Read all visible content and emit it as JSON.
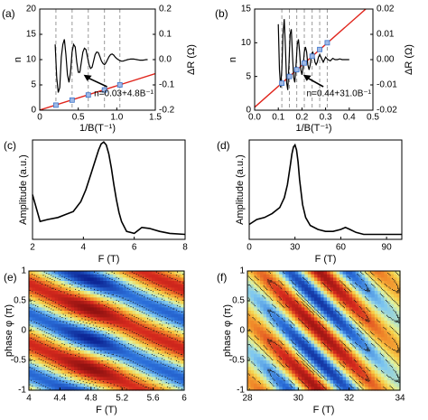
{
  "figure": {
    "panels": [
      "(a)",
      "(b)",
      "(c)",
      "(d)",
      "(e)",
      "(f)"
    ]
  },
  "chart_data": [
    {
      "panel": "(a)",
      "type": "line",
      "xlabel": "1/B(T⁻¹)",
      "ylabel": "n",
      "ylabel_right": "ΔR (Ω)",
      "xlim": [
        0,
        1.5
      ],
      "ylim": [
        0,
        20
      ],
      "ylim_right": [
        -0.2,
        0.2
      ],
      "xticks": [
        "0",
        "0.5",
        "1.0",
        "1.5"
      ],
      "yticks": [
        "0",
        "5",
        "10",
        "15",
        "20"
      ],
      "yticks_right": [
        "-0.2",
        "-0.1",
        "0.0",
        "0.1",
        "0.2"
      ],
      "grid": false,
      "annotation": "n=0.03+4.8B⁻¹",
      "guide_lines_x": [
        0.21,
        0.42,
        0.63,
        0.84,
        1.04
      ],
      "series": [
        {
          "role": "fit_line",
          "color": "#e0241b",
          "x": [
            0,
            1.5
          ],
          "y": [
            0.03,
            7.23
          ]
        },
        {
          "role": "index_points",
          "color": "#3b73c9",
          "x": [
            0.21,
            0.42,
            0.63,
            0.84,
            1.04
          ],
          "y": [
            1,
            2,
            3,
            4,
            5
          ]
        },
        {
          "role": "oscillation_dR",
          "color": "#000000",
          "x": [
            0.2,
            0.22,
            0.24,
            0.26,
            0.28,
            0.3,
            0.32,
            0.34,
            0.36,
            0.38,
            0.4,
            0.42,
            0.44,
            0.46,
            0.48,
            0.5,
            0.52,
            0.54,
            0.56,
            0.58,
            0.6,
            0.62,
            0.64,
            0.66,
            0.68,
            0.7,
            0.72,
            0.74,
            0.76,
            0.78,
            0.8,
            0.82,
            0.84,
            0.86,
            0.88,
            0.9,
            0.92,
            0.94,
            0.96,
            0.98,
            1.0,
            1.02,
            1.04,
            1.06,
            1.08,
            1.1,
            1.12,
            1.14,
            1.16,
            1.18,
            1.2,
            1.22,
            1.24,
            1.26,
            1.28,
            1.3,
            1.32,
            1.34,
            1.36,
            1.38,
            1.4
          ],
          "y": [
            0.06,
            -0.07,
            -0.13,
            -0.11,
            0.01,
            0.06,
            0.08,
            0.02,
            -0.06,
            -0.09,
            -0.05,
            0.03,
            0.06,
            0.05,
            -0.01,
            -0.05,
            -0.05,
            -0.01,
            0.03,
            0.045,
            0.04,
            0.01,
            -0.02,
            -0.035,
            -0.03,
            -0.005,
            0.02,
            0.03,
            0.028,
            0.012,
            -0.005,
            -0.015,
            -0.02,
            -0.012,
            0.0,
            0.012,
            0.02,
            0.022,
            0.018,
            0.01,
            0.004,
            0.0,
            -0.004,
            -0.006,
            -0.006,
            -0.004,
            -0.002,
            0.0,
            0.001,
            0.002,
            0.002,
            0.002,
            0.001,
            0.0,
            -0.001,
            -0.002,
            -0.002,
            -0.002,
            -0.001,
            0.0,
            0.0
          ]
        }
      ]
    },
    {
      "panel": "(b)",
      "type": "line",
      "xlabel": "1/B(T⁻¹)",
      "ylabel": "n",
      "ylabel_right": "ΔR (Ω)",
      "xlim": [
        0.0,
        0.5
      ],
      "ylim": [
        0,
        15
      ],
      "ylim_right": [
        -0.02,
        0.02
      ],
      "xticks": [
        "0.0",
        "0.1",
        "0.2",
        "0.3",
        "0.4",
        "0.5"
      ],
      "yticks": [
        "0",
        "5",
        "10",
        "15"
      ],
      "yticks_right": [
        "-0.02",
        "-0.01",
        "0.00",
        "0.01",
        "0.02"
      ],
      "grid": false,
      "annotation": "n=0.44+31.0B⁻¹",
      "guide_lines_x": [
        0.115,
        0.147,
        0.178,
        0.21,
        0.243,
        0.275,
        0.307
      ],
      "series": [
        {
          "role": "fit_line",
          "color": "#e0241b",
          "x": [
            0,
            0.5
          ],
          "y": [
            0.44,
            15.94
          ]
        },
        {
          "role": "index_points",
          "color": "#3b73c9",
          "x": [
            0.115,
            0.147,
            0.178,
            0.21,
            0.243,
            0.275,
            0.307
          ],
          "y": [
            4,
            5,
            6,
            7,
            8,
            9,
            10
          ]
        },
        {
          "role": "oscillation_dR",
          "color": "#000000",
          "x": [
            0.1,
            0.105,
            0.11,
            0.115,
            0.12,
            0.125,
            0.13,
            0.135,
            0.14,
            0.145,
            0.15,
            0.155,
            0.16,
            0.165,
            0.17,
            0.175,
            0.18,
            0.185,
            0.19,
            0.195,
            0.2,
            0.205,
            0.21,
            0.215,
            0.22,
            0.225,
            0.23,
            0.235,
            0.24,
            0.245,
            0.25,
            0.255,
            0.26,
            0.265,
            0.27,
            0.275,
            0.28,
            0.285,
            0.29,
            0.295,
            0.3,
            0.31,
            0.32,
            0.33,
            0.34,
            0.35,
            0.36,
            0.37,
            0.38,
            0.39,
            0.4
          ],
          "y": [
            0.014,
            -0.004,
            -0.011,
            -0.004,
            0.01,
            0.016,
            0.005,
            -0.009,
            -0.012,
            -0.002,
            0.01,
            0.012,
            0.002,
            -0.007,
            -0.009,
            -0.002,
            0.006,
            0.008,
            0.003,
            -0.004,
            -0.006,
            -0.003,
            0.003,
            0.005,
            0.003,
            -0.002,
            -0.004,
            -0.002,
            0.002,
            0.003,
            0.002,
            -0.001,
            -0.002,
            -0.001,
            0.001,
            0.002,
            0.001,
            0.0,
            -0.001,
            0.0,
            0.001,
            0.0,
            -0.0005,
            0.0005,
            0.0,
            0.0,
            0.0003,
            0.0,
            0.0,
            0.0,
            0.0
          ]
        }
      ]
    },
    {
      "panel": "(c)",
      "type": "line",
      "xlabel": "F (T)",
      "ylabel": "Amplitude (a.u.)",
      "xlim": [
        2,
        8
      ],
      "xticks": [
        "2",
        "4",
        "6",
        "8"
      ],
      "grid": false,
      "series": [
        {
          "x": [
            2.0,
            2.3,
            2.6,
            3.0,
            3.3,
            3.6,
            3.9,
            4.1,
            4.3,
            4.5,
            4.6,
            4.7,
            4.8,
            4.9,
            5.0,
            5.1,
            5.2,
            5.3,
            5.4,
            5.5,
            5.7,
            6.0,
            6.3,
            6.6,
            7.0,
            7.4,
            8.0
          ],
          "y": [
            0.45,
            0.18,
            0.2,
            0.22,
            0.25,
            0.28,
            0.38,
            0.5,
            0.66,
            0.82,
            0.9,
            0.96,
            0.98,
            0.95,
            0.86,
            0.72,
            0.55,
            0.4,
            0.27,
            0.18,
            0.08,
            0.06,
            0.12,
            0.11,
            0.08,
            0.06,
            0.05
          ]
        }
      ]
    },
    {
      "panel": "(d)",
      "type": "line",
      "xlabel": "F (T)",
      "ylabel": "Amplitude (a.u.)",
      "xlim": [
        0,
        100
      ],
      "xticks": [
        "0",
        "30",
        "60",
        "90"
      ],
      "grid": false,
      "series": [
        {
          "x": [
            0,
            5,
            10,
            15,
            20,
            23,
            25,
            27,
            28,
            29,
            30,
            31,
            32,
            33,
            35,
            37,
            40,
            45,
            50,
            55,
            60,
            63,
            66,
            70,
            75,
            80,
            85,
            90,
            95,
            100
          ],
          "y": [
            0.15,
            0.2,
            0.22,
            0.26,
            0.32,
            0.42,
            0.55,
            0.75,
            0.86,
            0.93,
            0.95,
            0.9,
            0.78,
            0.6,
            0.35,
            0.22,
            0.14,
            0.1,
            0.08,
            0.08,
            0.1,
            0.12,
            0.1,
            0.07,
            0.05,
            0.05,
            0.05,
            0.05,
            0.05,
            0.05
          ]
        }
      ]
    },
    {
      "panel": "(e)",
      "type": "heatmap",
      "xlabel": "F (T)",
      "ylabel": "phase φ (π)",
      "xlim": [
        4,
        6
      ],
      "ylim": [
        -1,
        1
      ],
      "xticks": [
        "4",
        "4.4",
        "4.8",
        "5.2",
        "5.6",
        "6"
      ],
      "yticks": [
        "-1",
        "-0.5",
        "0",
        "0.5",
        "1"
      ],
      "colormap": [
        "#0a1f8f",
        "#2b6fd9",
        "#7fc8f0",
        "#dff2a0",
        "#f7d14a",
        "#f08a2a",
        "#d62a1e",
        "#8c1010"
      ],
      "maximum_near": {
        "F": 4.85,
        "phi": -0.62
      },
      "contours": true
    },
    {
      "panel": "(f)",
      "type": "heatmap",
      "xlabel": "F (T)",
      "ylabel": "phase φ (π)",
      "xlim": [
        28,
        34
      ],
      "ylim": [
        -1,
        1
      ],
      "xticks": [
        "28",
        "30",
        "32",
        "34"
      ],
      "yticks": [
        "-1",
        "-0.5",
        "0",
        "0.5",
        "1"
      ],
      "colormap": [
        "#0a1f8f",
        "#2b6fd9",
        "#7fc8f0",
        "#dff2a0",
        "#f7d14a",
        "#f08a2a",
        "#d62a1e",
        "#8c1010"
      ],
      "maximum_near": {
        "F": 30.8,
        "phi": 0.0
      },
      "contours": true
    }
  ]
}
